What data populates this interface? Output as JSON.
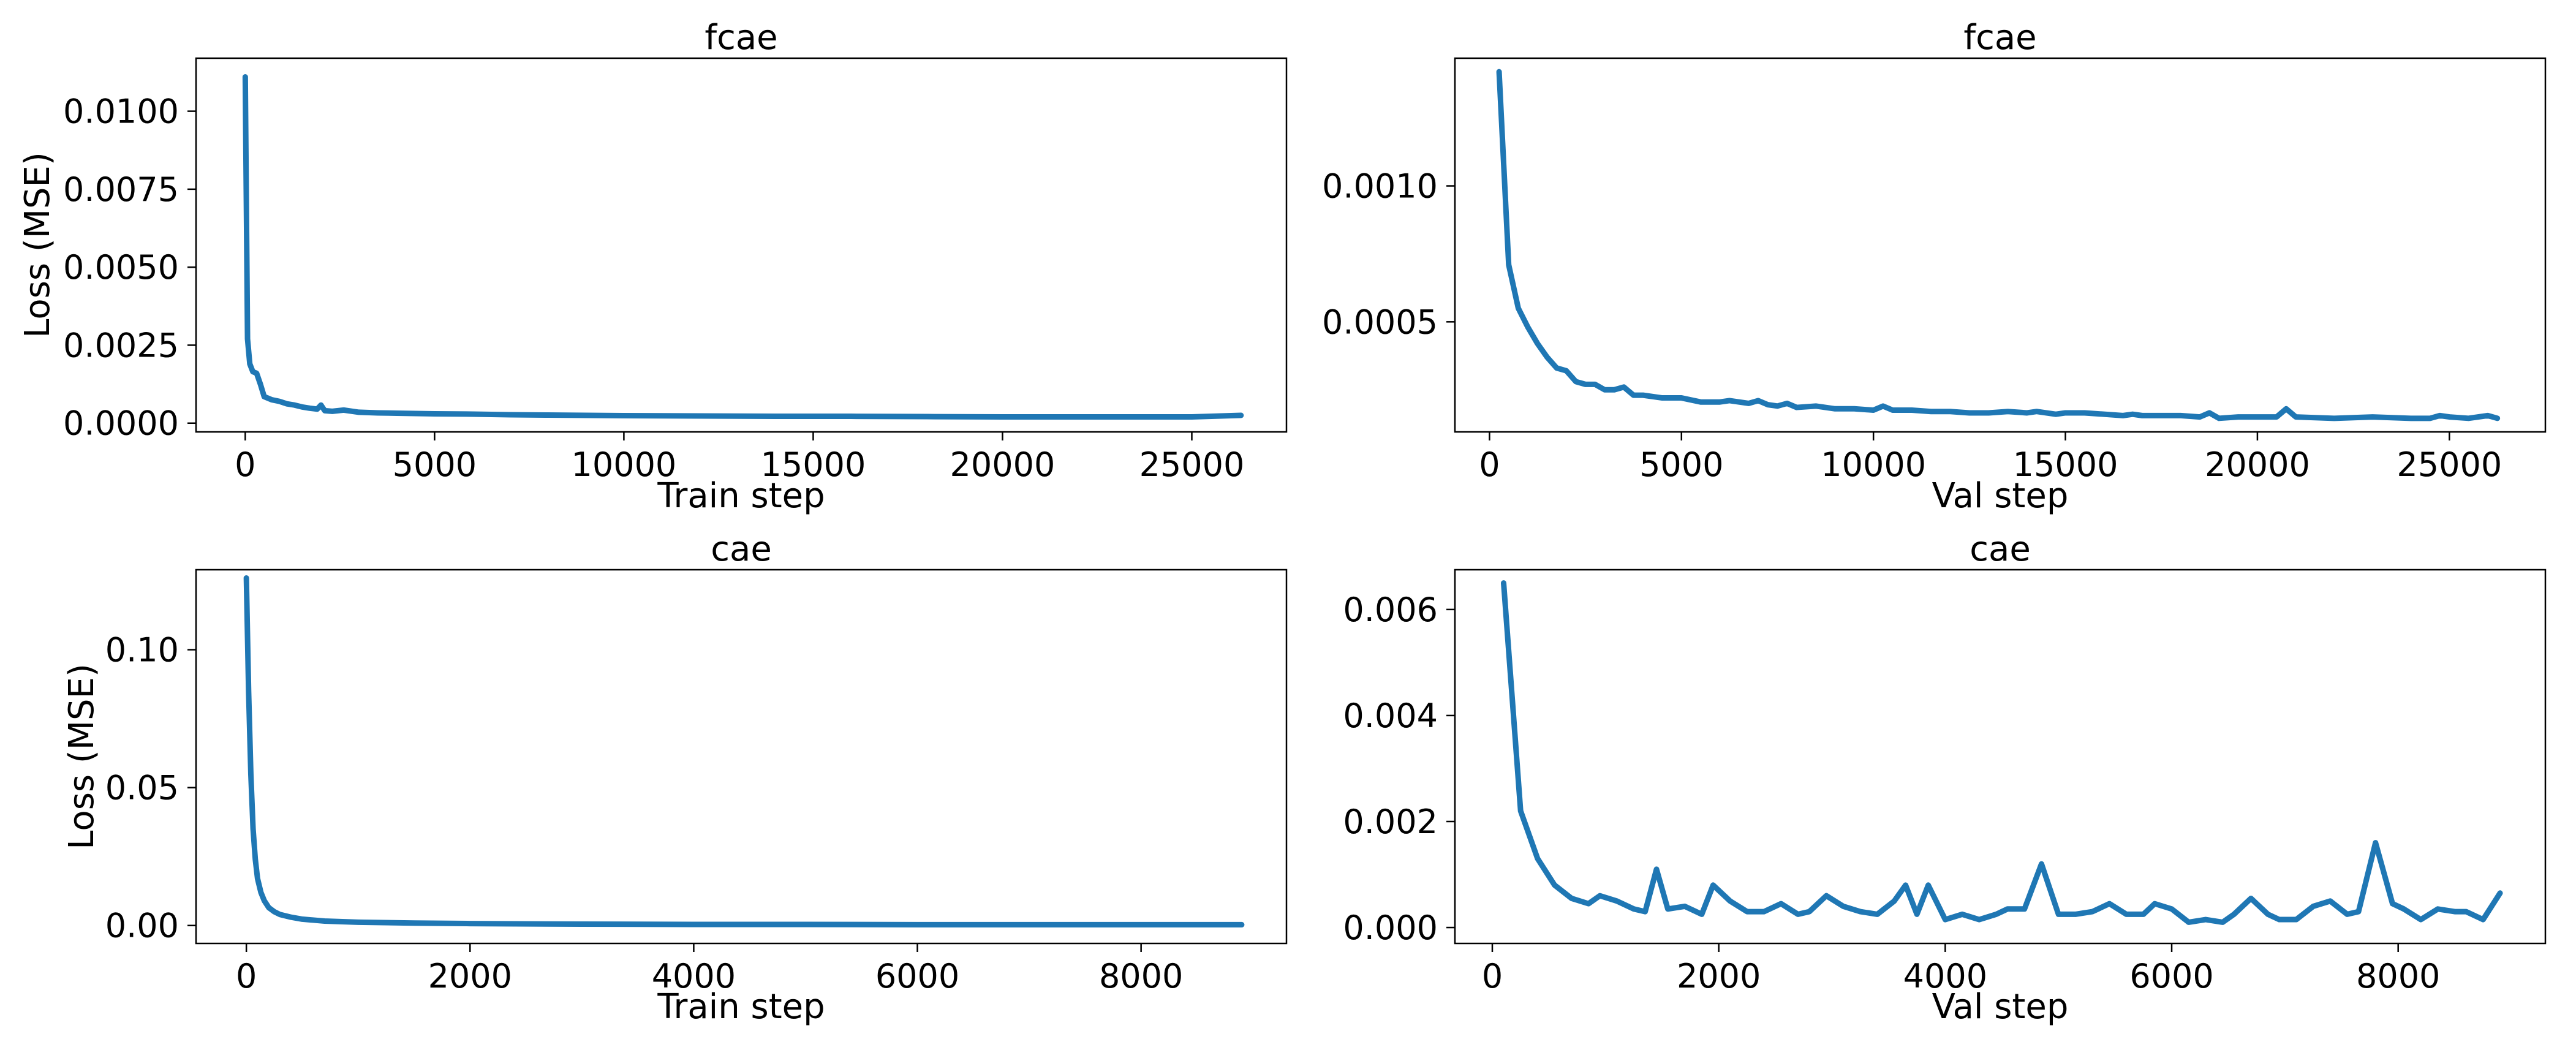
{
  "colors": {
    "line": "#1f77b4",
    "axes": "#000000",
    "background": "#ffffff"
  },
  "chart_data": [
    {
      "type": "line",
      "title": "fcae",
      "xlabel": "Train step",
      "ylabel": "Loss (MSE)",
      "xlim": [
        -1300,
        27500
      ],
      "ylim": [
        -0.00028,
        0.0117
      ],
      "xticks": [
        0,
        5000,
        10000,
        15000,
        20000,
        25000
      ],
      "xtick_labels": [
        "0",
        "5000",
        "10000",
        "15000",
        "20000",
        "25000"
      ],
      "yticks": [
        0.0,
        0.0025,
        0.005,
        0.0075,
        0.01
      ],
      "ytick_labels": [
        "0.0000",
        "0.0025",
        "0.0050",
        "0.0075",
        "0.0100"
      ],
      "grid": false,
      "series": [
        {
          "x": [
            0,
            60,
            120,
            200,
            300,
            400,
            500,
            700,
            900,
            1100,
            1300,
            1500,
            1700,
            1900,
            2000,
            2100,
            2300,
            2600,
            3000,
            3500,
            4000,
            5000,
            6000,
            7000,
            8000,
            9000,
            10000,
            12000,
            14000,
            16000,
            18000,
            20000,
            22000,
            24000,
            25000,
            26300
          ],
          "y": [
            0.0111,
            0.0027,
            0.0019,
            0.00165,
            0.0016,
            0.00125,
            0.00085,
            0.00075,
            0.0007,
            0.00062,
            0.00058,
            0.00052,
            0.00048,
            0.00045,
            0.00058,
            0.0004,
            0.00038,
            0.00042,
            0.00035,
            0.00033,
            0.00032,
            0.0003,
            0.00029,
            0.00027,
            0.00026,
            0.00025,
            0.00024,
            0.00023,
            0.00022,
            0.00022,
            0.00021,
            0.0002,
            0.0002,
            0.0002,
            0.0002,
            0.00025
          ]
        }
      ]
    },
    {
      "type": "line",
      "title": "fcae",
      "xlabel": "Val step",
      "ylabel": "",
      "xlim": [
        -900,
        27500
      ],
      "ylim": [
        9.5e-05,
        0.00147
      ],
      "xticks": [
        0,
        5000,
        10000,
        15000,
        20000,
        25000
      ],
      "xtick_labels": [
        "0",
        "5000",
        "10000",
        "15000",
        "20000",
        "25000"
      ],
      "yticks": [
        0.0005,
        0.001
      ],
      "ytick_labels": [
        "0.0005",
        "0.0010"
      ],
      "grid": false,
      "series": [
        {
          "x": [
            250,
            500,
            750,
            1000,
            1250,
            1500,
            1750,
            2000,
            2250,
            2500,
            2750,
            3000,
            3250,
            3500,
            3750,
            4000,
            4500,
            4750,
            5000,
            5500,
            6000,
            6250,
            6500,
            6750,
            7000,
            7250,
            7500,
            7750,
            8000,
            8500,
            9000,
            9500,
            10000,
            10250,
            10500,
            11000,
            11500,
            12000,
            12500,
            13000,
            13500,
            14000,
            14250,
            14500,
            14750,
            15000,
            15500,
            16000,
            16500,
            16750,
            17000,
            17500,
            18000,
            18500,
            18750,
            19000,
            19500,
            20000,
            20500,
            20750,
            21000,
            22000,
            23000,
            24000,
            24500,
            24750,
            25000,
            25500,
            26000,
            26250
          ],
          "y": [
            0.00142,
            0.00071,
            0.00055,
            0.00048,
            0.00042,
            0.00037,
            0.00033,
            0.00032,
            0.00028,
            0.00027,
            0.00027,
            0.00025,
            0.00025,
            0.00026,
            0.00023,
            0.00023,
            0.00022,
            0.00022,
            0.00022,
            0.000205,
            0.000205,
            0.00021,
            0.000205,
            0.0002,
            0.00021,
            0.000195,
            0.00019,
            0.0002,
            0.000185,
            0.00019,
            0.00018,
            0.00018,
            0.000175,
            0.00019,
            0.000175,
            0.000175,
            0.00017,
            0.00017,
            0.000165,
            0.000165,
            0.00017,
            0.000165,
            0.00017,
            0.000165,
            0.00016,
            0.000165,
            0.000165,
            0.00016,
            0.000155,
            0.00016,
            0.000155,
            0.000155,
            0.000155,
            0.00015,
            0.000165,
            0.000145,
            0.00015,
            0.00015,
            0.00015,
            0.00018,
            0.00015,
            0.000145,
            0.00015,
            0.000145,
            0.000145,
            0.000155,
            0.00015,
            0.000145,
            0.000155,
            0.000145
          ]
        }
      ]
    },
    {
      "type": "line",
      "title": "cae",
      "xlabel": "Train step",
      "ylabel": "Loss (MSE)",
      "xlim": [
        -450,
        9300
      ],
      "ylim": [
        -0.0065,
        0.129
      ],
      "xticks": [
        0,
        2000,
        4000,
        6000,
        8000
      ],
      "xtick_labels": [
        "0",
        "2000",
        "4000",
        "6000",
        "8000"
      ],
      "yticks": [
        0.0,
        0.05,
        0.1
      ],
      "ytick_labels": [
        "0.00",
        "0.05",
        "0.10"
      ],
      "grid": false,
      "series": [
        {
          "x": [
            0,
            20,
            40,
            60,
            80,
            100,
            130,
            160,
            200,
            250,
            300,
            400,
            500,
            700,
            1000,
            1500,
            2000,
            3000,
            4000,
            5000,
            6000,
            7000,
            8000,
            8900
          ],
          "y": [
            0.126,
            0.085,
            0.055,
            0.035,
            0.024,
            0.017,
            0.012,
            0.009,
            0.0065,
            0.005,
            0.004,
            0.003,
            0.0023,
            0.0016,
            0.0012,
            0.0009,
            0.0007,
            0.0005,
            0.0004,
            0.0004,
            0.0003,
            0.0003,
            0.0003,
            0.0003
          ]
        }
      ]
    },
    {
      "type": "line",
      "title": "cae",
      "xlabel": "Val step",
      "ylabel": "",
      "xlim": [
        -330,
        9300
      ],
      "ylim": [
        -0.0003,
        0.00675
      ],
      "xticks": [
        0,
        2000,
        4000,
        6000,
        8000
      ],
      "xtick_labels": [
        "0",
        "2000",
        "4000",
        "6000",
        "8000"
      ],
      "yticks": [
        0.0,
        0.002,
        0.004,
        0.006
      ],
      "ytick_labels": [
        "0.000",
        "0.002",
        "0.004",
        "0.006"
      ],
      "grid": false,
      "series": [
        {
          "x": [
            100,
            250,
            400,
            550,
            700,
            850,
            950,
            1100,
            1250,
            1350,
            1450,
            1550,
            1700,
            1850,
            1950,
            2100,
            2250,
            2400,
            2550,
            2700,
            2800,
            2950,
            3100,
            3250,
            3400,
            3550,
            3650,
            3750,
            3850,
            4000,
            4150,
            4300,
            4450,
            4550,
            4700,
            4850,
            5000,
            5150,
            5300,
            5450,
            5600,
            5750,
            5850,
            6000,
            6150,
            6300,
            6450,
            6550,
            6700,
            6850,
            6950,
            7100,
            7250,
            7400,
            7550,
            7650,
            7800,
            7950,
            8050,
            8200,
            8350,
            8500,
            8600,
            8750,
            8900
          ],
          "y": [
            0.0065,
            0.0022,
            0.0013,
            0.0008,
            0.00055,
            0.00045,
            0.0006,
            0.0005,
            0.00035,
            0.0003,
            0.0011,
            0.00035,
            0.0004,
            0.00025,
            0.0008,
            0.0005,
            0.0003,
            0.0003,
            0.00045,
            0.00025,
            0.0003,
            0.0006,
            0.0004,
            0.0003,
            0.00025,
            0.0005,
            0.0008,
            0.00025,
            0.0008,
            0.00015,
            0.00025,
            0.00015,
            0.00025,
            0.00035,
            0.00035,
            0.0012,
            0.00025,
            0.00025,
            0.0003,
            0.00045,
            0.00025,
            0.00025,
            0.00045,
            0.00035,
            0.0001,
            0.00015,
            0.0001,
            0.00025,
            0.00055,
            0.00025,
            0.00015,
            0.00015,
            0.0004,
            0.0005,
            0.00025,
            0.0003,
            0.0016,
            0.00045,
            0.00035,
            0.00015,
            0.00035,
            0.0003,
            0.0003,
            0.00015,
            0.00065
          ]
        }
      ]
    }
  ]
}
